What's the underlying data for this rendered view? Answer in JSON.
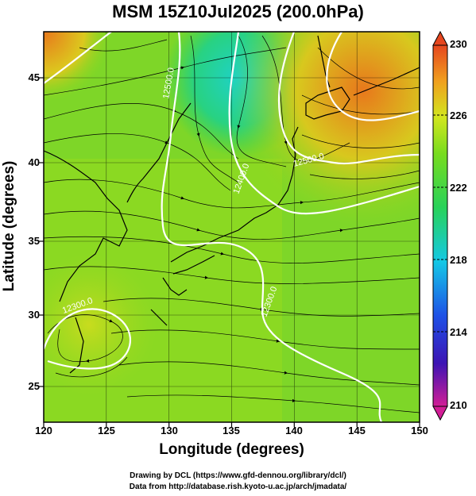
{
  "title": "MSM 15Z10Jul2025 (200.0hPa)",
  "x_axis": {
    "label": "Longitude (degrees)",
    "ticks": [
      "120",
      "125",
      "130",
      "135",
      "140",
      "145",
      "150"
    ]
  },
  "y_axis": {
    "label": "Latitude  (degrees)",
    "ticks": [
      "25",
      "30",
      "35",
      "40",
      "45"
    ]
  },
  "colorbar": {
    "ticks": [
      "230",
      "226",
      "222",
      "218",
      "214",
      "210"
    ],
    "colors": [
      "#d21e64",
      "#3c14b4",
      "#1e50e6",
      "#14c8e6",
      "#28d25a",
      "#64dc1e",
      "#c8e61e",
      "#f0a01e",
      "#e6461e"
    ]
  },
  "contour_labels": [
    "12500.0",
    "12500.0",
    "12400.0",
    "12300.0",
    "12300.0",
    "12500.0"
  ],
  "credits": {
    "line1": "Drawing by DCL (https://www.gfd-dennou.org/library/dcl/)",
    "line2": "Data from http://database.rish.kyoto-u.ac.jp/arch/jmadata/"
  }
}
